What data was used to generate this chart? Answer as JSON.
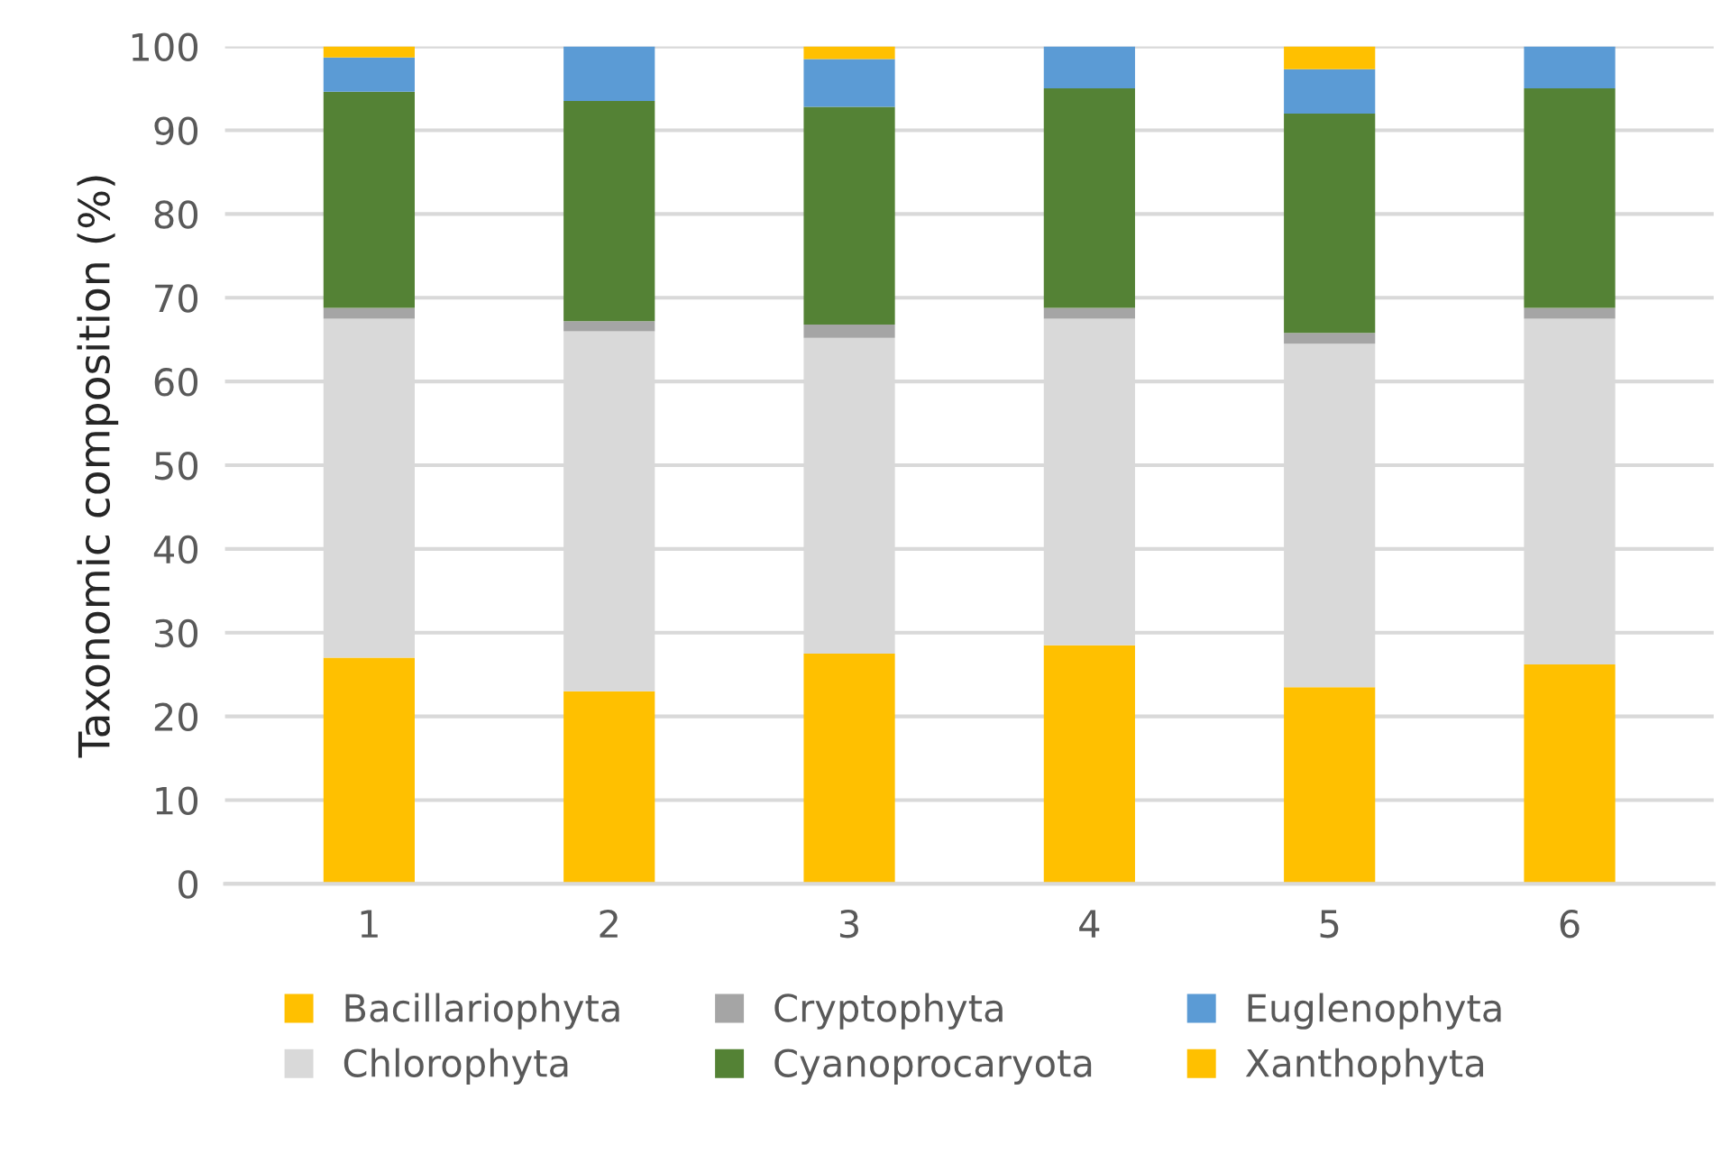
{
  "chart_data": {
    "type": "bar",
    "stacked": true,
    "ylabel": "Taxonomic composition (%)",
    "categories": [
      "1",
      "2",
      "3",
      "4",
      "5",
      "6"
    ],
    "series": [
      {
        "name": "Bacillariophyta",
        "color": "#ffc000",
        "values": [
          27,
          23,
          27.5,
          28.5,
          23.5,
          26.2
        ]
      },
      {
        "name": "Chlorophyta",
        "color": "#d9d9d9",
        "values": [
          40.5,
          43,
          37.7,
          39,
          41,
          41.3
        ]
      },
      {
        "name": "Cryptophyta",
        "color": "#a5a5a5",
        "values": [
          1.3,
          1.2,
          1.6,
          1.3,
          1.3,
          1.3
        ]
      },
      {
        "name": "Cyanoprocaryota",
        "color": "#548235",
        "values": [
          25.8,
          26.3,
          26,
          26.2,
          26.2,
          26.2
        ]
      },
      {
        "name": "Euglenophyta",
        "color": "#5b9bd5",
        "values": [
          4.1,
          6.5,
          5.7,
          5,
          5.3,
          5
        ]
      },
      {
        "name": "Xanthophyta",
        "color": "#ffc000",
        "values": [
          1.3,
          0,
          1.5,
          0,
          2.7,
          0
        ]
      }
    ],
    "ylim": [
      0,
      100
    ],
    "yticks": [
      0,
      10,
      20,
      30,
      40,
      50,
      60,
      70,
      80,
      90,
      100
    ],
    "grid": "y",
    "legend": "bottom"
  }
}
